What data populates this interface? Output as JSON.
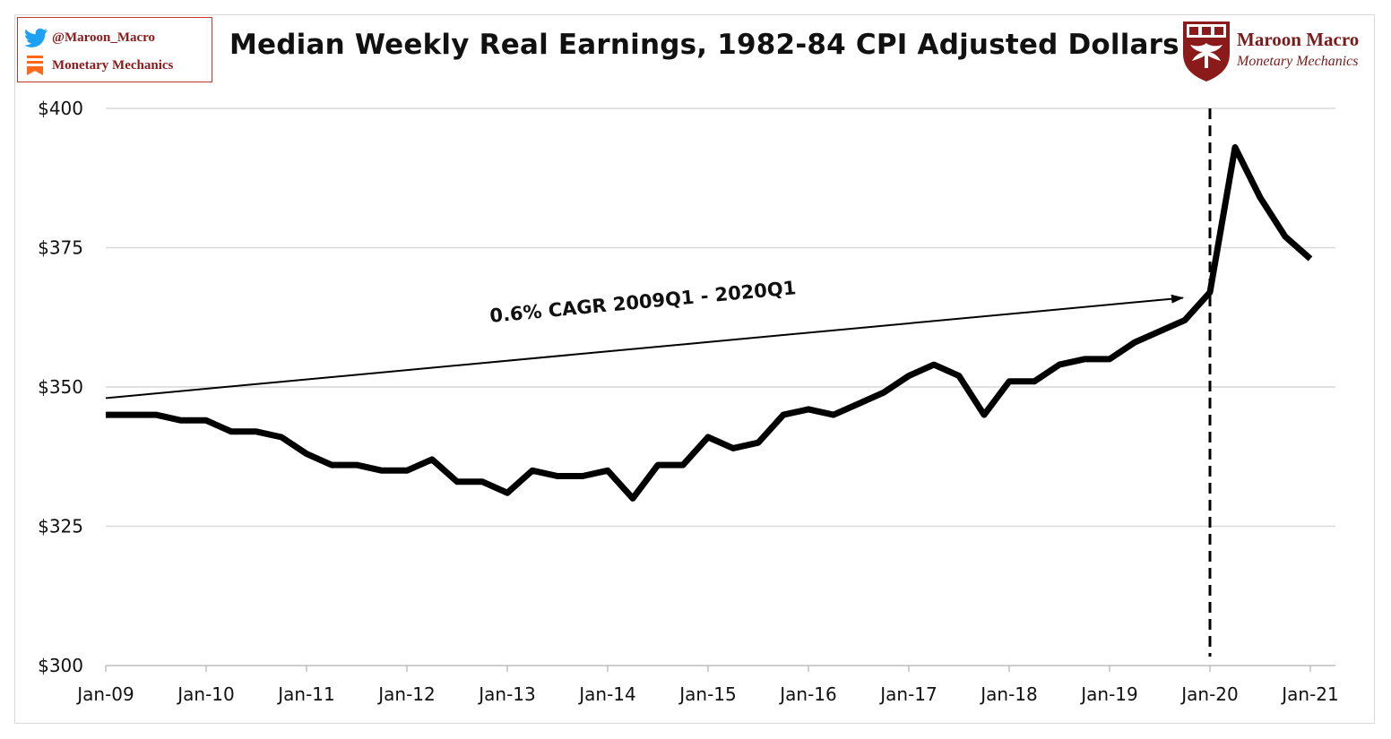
{
  "header": {
    "twitter_handle": "@Maroon_Macro",
    "newsletter": "Monetary Mechanics",
    "logo_name": "Maroon Macro",
    "logo_subtitle": "Monetary Mechanics"
  },
  "icons": {
    "twitter": "twitter-bird-icon",
    "newsletter": "substack-icon",
    "logo": "phoenix-crest-icon"
  },
  "colors": {
    "line": "#000000",
    "grid": "#d9d9d9",
    "brand": "#8b1a1a",
    "twitter": "#1da1f2",
    "substack": "#ff6719"
  },
  "chart_data": {
    "type": "line",
    "title": "Median Weekly Real Earnings, 1982-84 CPI Adjusted Dollars",
    "xlabel": "",
    "ylabel": "",
    "ylim": [
      300,
      400
    ],
    "xlim": [
      "2009-01",
      "2021-04"
    ],
    "yticks": [
      300,
      325,
      350,
      375,
      400
    ],
    "ytick_labels": [
      "$300",
      "$325",
      "$350",
      "$375",
      "$400"
    ],
    "xtick_labels": [
      "Jan-09",
      "Jan-10",
      "Jan-11",
      "Jan-12",
      "Jan-13",
      "Jan-14",
      "Jan-15",
      "Jan-16",
      "Jan-17",
      "Jan-18",
      "Jan-19",
      "Jan-20",
      "Jan-21"
    ],
    "grid": "horizontal",
    "series": [
      {
        "x": [
          "2009Q1",
          "2009Q2",
          "2009Q3",
          "2009Q4",
          "2010Q1",
          "2010Q2",
          "2010Q3",
          "2010Q4",
          "2011Q1",
          "2011Q2",
          "2011Q3",
          "2011Q4",
          "2012Q1",
          "2012Q2",
          "2012Q3",
          "2012Q4",
          "2013Q1",
          "2013Q2",
          "2013Q3",
          "2013Q4",
          "2014Q1",
          "2014Q2",
          "2014Q3",
          "2014Q4",
          "2015Q1",
          "2015Q2",
          "2015Q3",
          "2015Q4",
          "2016Q1",
          "2016Q2",
          "2016Q3",
          "2016Q4",
          "2017Q1",
          "2017Q2",
          "2017Q3",
          "2017Q4",
          "2018Q1",
          "2018Q2",
          "2018Q3",
          "2018Q4",
          "2019Q1",
          "2019Q2",
          "2019Q3",
          "2019Q4",
          "2020Q1",
          "2020Q2",
          "2020Q3",
          "2020Q4",
          "2021Q1"
        ],
        "values": [
          345,
          345,
          345,
          344,
          344,
          342,
          342,
          341,
          338,
          336,
          336,
          335,
          335,
          337,
          333,
          333,
          331,
          335,
          334,
          334,
          335,
          330,
          336,
          336,
          341,
          339,
          340,
          345,
          346,
          345,
          347,
          349,
          352,
          354,
          352,
          345,
          351,
          351,
          354,
          355,
          355,
          358,
          360,
          362,
          367,
          393,
          384,
          377,
          373
        ]
      }
    ],
    "annotations": [
      {
        "text": "0.6% CAGR 2009Q1 - 2020Q1",
        "type": "arrow",
        "from": [
          "2009Q1",
          348
        ],
        "to": [
          "2019Q4",
          366
        ]
      },
      {
        "type": "vertical-dashed-line",
        "x": "2020Q1"
      }
    ]
  }
}
